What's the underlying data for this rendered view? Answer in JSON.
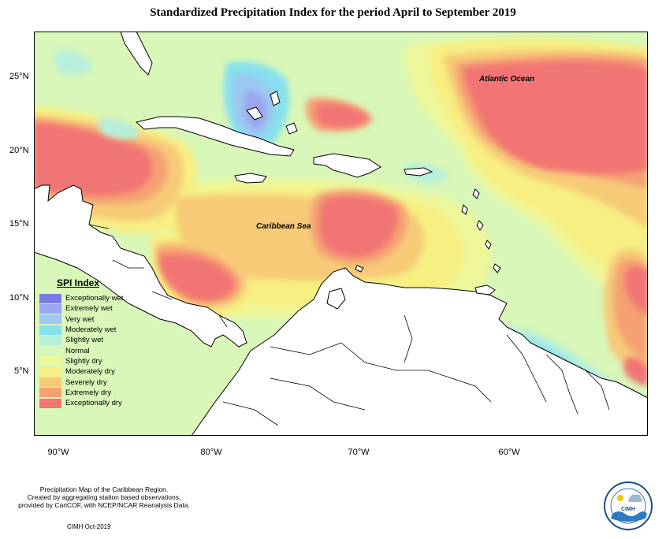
{
  "title": "Standardized Precipitation Index for the period April to September 2019",
  "map_labels": {
    "atlantic": "Atlantic Ocean",
    "caribbean": "Caribbean Sea"
  },
  "latitude_ticks": [
    "25°N",
    "20°N",
    "15°N",
    "10°N",
    "5°N"
  ],
  "longitude_ticks": [
    "90°W",
    "80°W",
    "70°W",
    "60°W"
  ],
  "legend": {
    "title": "SPI Index",
    "items": [
      {
        "label": "Exceptionally wet",
        "color": "#7b7be6"
      },
      {
        "label": "Extremely wet",
        "color": "#9aa6f0"
      },
      {
        "label": "Very wet",
        "color": "#9cc8f2"
      },
      {
        "label": "Moderately wet",
        "color": "#86e0ee"
      },
      {
        "label": "Slightly wet",
        "color": "#b6efdc"
      },
      {
        "label": "Normal",
        "color": "#d8f7b8"
      },
      {
        "label": "Slightly dry",
        "color": "#eef79a"
      },
      {
        "label": "Moderately dry",
        "color": "#f7ef82"
      },
      {
        "label": "Severely dry",
        "color": "#f7ca78"
      },
      {
        "label": "Extremely dry",
        "color": "#f5a173"
      },
      {
        "label": "Exceptionally dry",
        "color": "#f27474"
      }
    ]
  },
  "footer": {
    "line1": "Precipitation Map of the Caribbean Region.",
    "line2": "Created by aggregating station based observations,",
    "line3": "provided by CariCOF, with NCEP/NCAR Reanalysis Data.",
    "date": "CIMH Oct-2019"
  },
  "logo": {
    "text": "CIMH",
    "top_arc": "Caribbean Institute for",
    "bottom_arc": "Meteorology and Hydrology"
  }
}
